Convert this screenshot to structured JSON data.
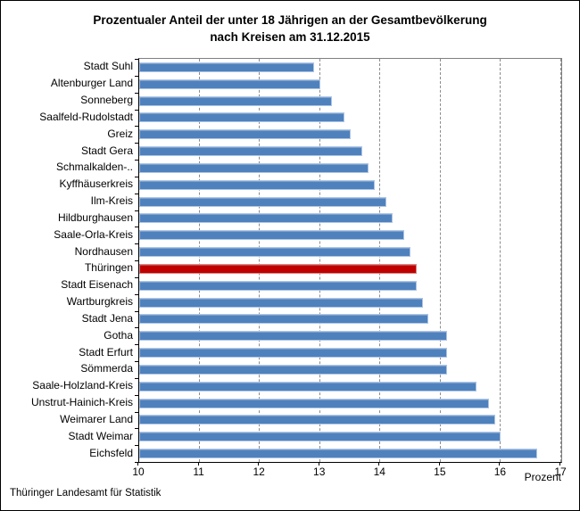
{
  "title": {
    "line1": "Prozentualer Anteil der unter 18 Jährigen an der Gesamtbevölkerung",
    "line2": "nach Kreisen am 31.12.2015"
  },
  "footer": "Thüringer Landesamt für Statistik",
  "chart_data": {
    "type": "bar",
    "orientation": "horizontal",
    "title": "Prozentualer Anteil der unter 18 Jährigen an der Gesamtbevölkerung nach Kreisen am 31.12.2015",
    "xlabel": "Prozent",
    "xlim": [
      10,
      17
    ],
    "xticks": [
      10,
      11,
      12,
      13,
      14,
      15,
      16,
      17
    ],
    "grid": "vertical-dashed",
    "categories": [
      "Stadt Suhl",
      "Altenburger Land",
      "Sonneberg",
      "Saalfeld-Rudolstadt",
      "Greiz",
      "Stadt Gera",
      "Schmalkalden-..",
      "Kyffhäuserkreis",
      "Ilm-Kreis",
      "Hildburghausen",
      "Saale-Orla-Kreis",
      "Nordhausen",
      "Thüringen",
      "Stadt Eisenach",
      "Wartburgkreis",
      "Stadt Jena",
      "Gotha",
      "Stadt Erfurt",
      "Sömmerda",
      "Saale-Holzland-Kreis",
      "Unstrut-Hainich-Kreis",
      "Weimarer Land",
      "Stadt Weimar",
      "Eichsfeld"
    ],
    "values": [
      12.9,
      13.0,
      13.2,
      13.4,
      13.5,
      13.7,
      13.8,
      13.9,
      14.1,
      14.2,
      14.4,
      14.5,
      14.6,
      14.6,
      14.7,
      14.8,
      15.1,
      15.1,
      15.1,
      15.6,
      15.8,
      15.9,
      16.0,
      16.6
    ],
    "highlight_category": "Thüringen",
    "colors": {
      "bar": "#4f81bd",
      "bar_edge": "#aec6e5",
      "highlight": "#c00000",
      "highlight_edge": "#d48a8a",
      "grid": "#8c8c8c",
      "axis": "#000000"
    }
  }
}
